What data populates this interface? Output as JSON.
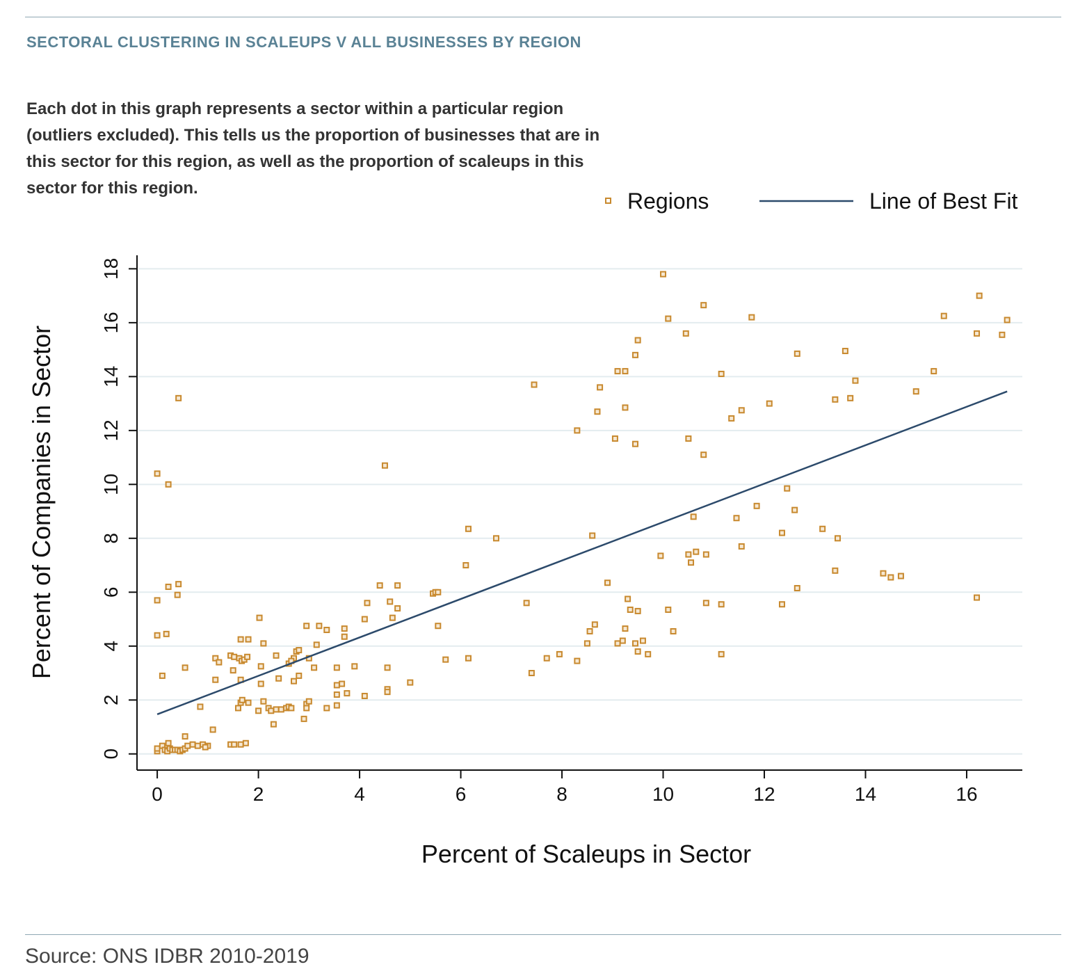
{
  "header": {
    "title": "SECTORAL CLUSTERING IN SCALEUPS V ALL BUSINESSES BY REGION",
    "description": "Each dot in this graph represents a sector within a particular region (outliers excluded). This tells us the proportion of businesses that are in this sector for this region, as well as the proportion of scaleups in this sector for this region."
  },
  "footer": {
    "source": "Source: ONS IDBR 2010-2019"
  },
  "colors": {
    "points": "#c8892e",
    "fit_line": "#2c4a6b",
    "heading": "#5a8295",
    "grid": "#e3ecef"
  },
  "chart_data": {
    "type": "scatter",
    "xlabel": "Percent of Scaleups in Sector",
    "ylabel": "Percent of Companies in Sector",
    "xlim": [
      -0.4,
      17.1
    ],
    "ylim": [
      -0.6,
      18.5
    ],
    "x_ticks": [
      0,
      2,
      4,
      6,
      8,
      10,
      12,
      14,
      16
    ],
    "y_ticks": [
      0,
      2,
      4,
      6,
      8,
      10,
      12,
      14,
      16,
      18
    ],
    "x_tick_labels": [
      "0",
      "2",
      "4",
      "6",
      "8",
      "10",
      "12",
      "14",
      "16"
    ],
    "y_tick_labels": [
      "0",
      "2",
      "4",
      "6",
      "8",
      "10",
      "12",
      "14",
      "16",
      "18"
    ],
    "grid": "horizontal",
    "legend": {
      "placement": "top-right",
      "points_label": "Regions",
      "line_label": "Line of Best Fit"
    },
    "best_fit": {
      "x": [
        0,
        16.8
      ],
      "y": [
        1.47,
        13.45
      ]
    },
    "series": [
      {
        "name": "Regions",
        "points": [
          [
            0,
            0.1
          ],
          [
            0,
            0.2
          ],
          [
            0.1,
            0.3
          ],
          [
            0.15,
            0.15
          ],
          [
            0.2,
            0.1
          ],
          [
            0.25,
            0.2
          ],
          [
            0.3,
            0.15
          ],
          [
            0.35,
            0.15
          ],
          [
            0.4,
            0.15
          ],
          [
            0.45,
            0.1
          ],
          [
            0.5,
            0.15
          ],
          [
            0.55,
            0.2
          ],
          [
            0.6,
            0.3
          ],
          [
            0.7,
            0.35
          ],
          [
            0.8,
            0.3
          ],
          [
            0.9,
            0.35
          ],
          [
            1.0,
            0.3
          ],
          [
            0.95,
            0.25
          ],
          [
            0.22,
            0.4
          ],
          [
            0.55,
            0.65
          ],
          [
            1.1,
            0.9
          ],
          [
            1.45,
            0.35
          ],
          [
            1.52,
            0.35
          ],
          [
            1.65,
            0.35
          ],
          [
            1.75,
            0.4
          ],
          [
            0,
            10.4
          ],
          [
            0.22,
            10.0
          ],
          [
            0.42,
            13.2
          ],
          [
            0,
            5.7
          ],
          [
            0.22,
            6.2
          ],
          [
            0.4,
            5.9
          ],
          [
            0.42,
            6.3
          ],
          [
            0,
            4.4
          ],
          [
            0.18,
            4.45
          ],
          [
            0.1,
            2.9
          ],
          [
            0.55,
            3.2
          ],
          [
            0.85,
            1.75
          ],
          [
            1.15,
            3.55
          ],
          [
            1.22,
            3.4
          ],
          [
            1.45,
            3.65
          ],
          [
            1.52,
            3.6
          ],
          [
            1.62,
            3.55
          ],
          [
            1.67,
            3.45
          ],
          [
            1.72,
            3.5
          ],
          [
            1.78,
            3.6
          ],
          [
            1.65,
            4.25
          ],
          [
            1.8,
            4.25
          ],
          [
            1.5,
            3.1
          ],
          [
            1.65,
            2.75
          ],
          [
            1.15,
            2.75
          ],
          [
            2.02,
            5.05
          ],
          [
            2.1,
            4.1
          ],
          [
            2.05,
            3.25
          ],
          [
            2.35,
            3.65
          ],
          [
            2.05,
            2.6
          ],
          [
            1.6,
            1.7
          ],
          [
            1.65,
            1.9
          ],
          [
            1.68,
            2.0
          ],
          [
            1.8,
            1.9
          ],
          [
            2.0,
            1.6
          ],
          [
            2.1,
            1.95
          ],
          [
            2.2,
            1.7
          ],
          [
            2.25,
            1.6
          ],
          [
            2.35,
            1.65
          ],
          [
            2.45,
            1.65
          ],
          [
            2.3,
            1.1
          ],
          [
            2.55,
            1.7
          ],
          [
            2.6,
            1.75
          ],
          [
            2.65,
            1.7
          ],
          [
            2.4,
            2.8
          ],
          [
            2.7,
            2.7
          ],
          [
            2.8,
            2.9
          ],
          [
            2.6,
            3.35
          ],
          [
            2.7,
            3.55
          ],
          [
            2.75,
            3.8
          ],
          [
            2.8,
            3.85
          ],
          [
            2.65,
            3.45
          ],
          [
            2.95,
            4.75
          ],
          [
            3.0,
            3.55
          ],
          [
            3.1,
            3.2
          ],
          [
            3.15,
            4.05
          ],
          [
            3.2,
            4.75
          ],
          [
            3.35,
            4.6
          ],
          [
            2.95,
            1.85
          ],
          [
            3.0,
            1.95
          ],
          [
            2.95,
            1.7
          ],
          [
            2.9,
            1.3
          ],
          [
            3.35,
            1.7
          ],
          [
            3.55,
            3.2
          ],
          [
            3.7,
            4.35
          ],
          [
            3.7,
            4.65
          ],
          [
            3.55,
            2.55
          ],
          [
            3.65,
            2.6
          ],
          [
            3.55,
            2.2
          ],
          [
            3.75,
            2.25
          ],
          [
            3.55,
            1.8
          ],
          [
            3.9,
            3.25
          ],
          [
            4.1,
            5.0
          ],
          [
            4.15,
            5.6
          ],
          [
            4.4,
            6.25
          ],
          [
            4.75,
            6.25
          ],
          [
            4.6,
            5.65
          ],
          [
            4.65,
            5.05
          ],
          [
            4.75,
            5.4
          ],
          [
            4.5,
            10.7
          ],
          [
            4.1,
            2.15
          ],
          [
            4.55,
            3.2
          ],
          [
            4.55,
            2.4
          ],
          [
            4.55,
            2.3
          ],
          [
            5.0,
            2.65
          ],
          [
            5.45,
            5.95
          ],
          [
            5.5,
            6.0
          ],
          [
            5.55,
            6.0
          ],
          [
            5.55,
            4.75
          ],
          [
            5.7,
            3.5
          ],
          [
            6.1,
            7.0
          ],
          [
            6.15,
            8.35
          ],
          [
            6.15,
            3.55
          ],
          [
            6.7,
            8.0
          ],
          [
            7.3,
            5.6
          ],
          [
            7.4,
            3.0
          ],
          [
            7.45,
            13.7
          ],
          [
            7.7,
            3.55
          ],
          [
            7.95,
            3.7
          ],
          [
            8.3,
            12.0
          ],
          [
            8.3,
            3.45
          ],
          [
            8.5,
            4.1
          ],
          [
            8.55,
            4.55
          ],
          [
            8.6,
            8.1
          ],
          [
            8.65,
            4.8
          ],
          [
            8.7,
            12.7
          ],
          [
            8.75,
            13.6
          ],
          [
            8.9,
            6.35
          ],
          [
            9.05,
            11.7
          ],
          [
            9.1,
            14.2
          ],
          [
            9.1,
            4.1
          ],
          [
            9.2,
            4.2
          ],
          [
            9.25,
            4.65
          ],
          [
            9.25,
            14.2
          ],
          [
            9.25,
            12.85
          ],
          [
            9.3,
            5.75
          ],
          [
            9.35,
            5.35
          ],
          [
            9.45,
            14.8
          ],
          [
            9.5,
            15.35
          ],
          [
            9.45,
            11.5
          ],
          [
            9.45,
            4.1
          ],
          [
            9.5,
            5.3
          ],
          [
            9.5,
            3.8
          ],
          [
            9.6,
            4.2
          ],
          [
            9.7,
            3.7
          ],
          [
            9.95,
            7.35
          ],
          [
            10.0,
            17.8
          ],
          [
            10.1,
            16.15
          ],
          [
            10.1,
            5.35
          ],
          [
            10.2,
            4.55
          ],
          [
            10.45,
            15.6
          ],
          [
            10.5,
            11.7
          ],
          [
            10.5,
            7.4
          ],
          [
            10.55,
            7.1
          ],
          [
            10.6,
            8.8
          ],
          [
            10.65,
            7.5
          ],
          [
            10.8,
            16.65
          ],
          [
            10.8,
            11.1
          ],
          [
            10.85,
            5.6
          ],
          [
            10.85,
            7.4
          ],
          [
            11.15,
            14.1
          ],
          [
            11.15,
            5.55
          ],
          [
            11.15,
            3.7
          ],
          [
            11.35,
            12.45
          ],
          [
            11.45,
            8.75
          ],
          [
            11.55,
            12.75
          ],
          [
            11.55,
            7.7
          ],
          [
            11.75,
            16.2
          ],
          [
            11.85,
            9.2
          ],
          [
            12.1,
            13.0
          ],
          [
            12.35,
            8.2
          ],
          [
            12.35,
            5.55
          ],
          [
            12.45,
            9.85
          ],
          [
            12.6,
            9.05
          ],
          [
            12.65,
            14.85
          ],
          [
            12.65,
            6.15
          ],
          [
            13.15,
            8.35
          ],
          [
            13.4,
            13.15
          ],
          [
            13.45,
            8.0
          ],
          [
            13.4,
            6.8
          ],
          [
            13.6,
            14.95
          ],
          [
            13.7,
            13.2
          ],
          [
            13.8,
            13.85
          ],
          [
            14.35,
            6.7
          ],
          [
            14.5,
            6.55
          ],
          [
            14.7,
            6.6
          ],
          [
            15.0,
            13.45
          ],
          [
            15.35,
            14.2
          ],
          [
            15.55,
            16.25
          ],
          [
            16.2,
            15.6
          ],
          [
            16.25,
            17.0
          ],
          [
            16.2,
            5.8
          ],
          [
            16.7,
            15.55
          ],
          [
            16.8,
            16.1
          ]
        ]
      }
    ]
  }
}
